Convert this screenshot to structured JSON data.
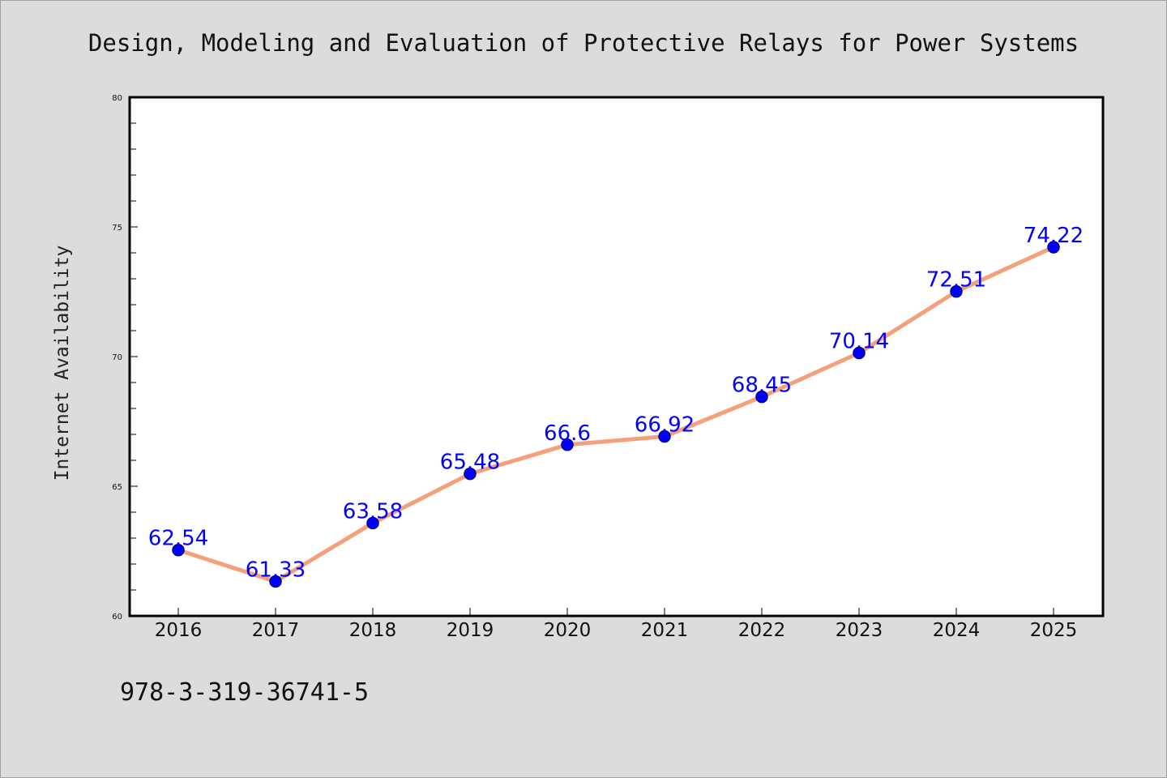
{
  "chart_data": {
    "type": "line",
    "title": "Design, Modeling and Evaluation of Protective Relays for Power Systems",
    "xlabel": "",
    "ylabel": "Internet Availability",
    "categories": [
      "2016",
      "2017",
      "2018",
      "2019",
      "2020",
      "2021",
      "2022",
      "2023",
      "2024",
      "2025"
    ],
    "series": [
      {
        "values": [
          62.54,
          61.33,
          63.58,
          65.48,
          66.6,
          66.92,
          68.45,
          70.14,
          72.51,
          74.22
        ],
        "labels": [
          "62.54",
          "61.33",
          "63.58",
          "65.48",
          "66.6",
          "66.92",
          "68.45",
          "70.14",
          "72.51",
          "74.22"
        ]
      }
    ],
    "ylim": [
      60,
      80
    ],
    "yticks": [
      "60",
      "65",
      "70",
      "75",
      "80"
    ],
    "grid": false,
    "legend": "none",
    "colors": {
      "line": "#f4a07a",
      "marker": "#0000ff",
      "marker_edge": "#00008b",
      "data_label": "#0000ff",
      "plot_background": "#ffffff",
      "figure_background": "#dcdcdc"
    }
  },
  "footer": {
    "isbn": "978-3-319-36741-5"
  }
}
